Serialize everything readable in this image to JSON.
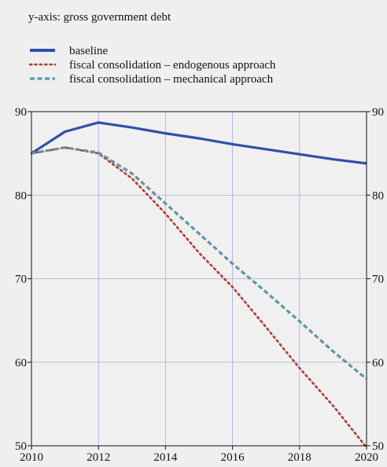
{
  "chart_data": {
    "type": "line",
    "axis_note": "y-axis: gross government debt",
    "x": [
      2010,
      2011,
      2012,
      2013,
      2014,
      2015,
      2016,
      2017,
      2018,
      2019,
      2020
    ],
    "xlim": [
      2010,
      2020
    ],
    "x_ticks": [
      2010,
      2012,
      2014,
      2016,
      2018,
      2020
    ],
    "ylim": [
      50,
      90
    ],
    "y_ticks": [
      50,
      60,
      70,
      80,
      90
    ],
    "grid": true,
    "legend_position": "top-left",
    "series": [
      {
        "name": "baseline",
        "style": "solid",
        "color": "#3050a8",
        "values": [
          85.0,
          87.6,
          88.7,
          88.1,
          87.4,
          86.8,
          86.1,
          85.5,
          84.9,
          84.3,
          83.8
        ]
      },
      {
        "name": "fiscal consolidation – endogenous approach",
        "style": "dotted",
        "color": "#b23a2e",
        "values": [
          85.0,
          85.7,
          85.0,
          82.0,
          77.8,
          73.1,
          69.0,
          64.2,
          59.3,
          54.8,
          49.8
        ]
      },
      {
        "name": "fiscal consolidation – mechanical approach",
        "style": "dashed",
        "color": "#5e97a4",
        "values": [
          85.0,
          85.7,
          85.1,
          82.6,
          79.0,
          75.4,
          71.8,
          68.4,
          64.9,
          61.3,
          58.0
        ]
      }
    ]
  }
}
